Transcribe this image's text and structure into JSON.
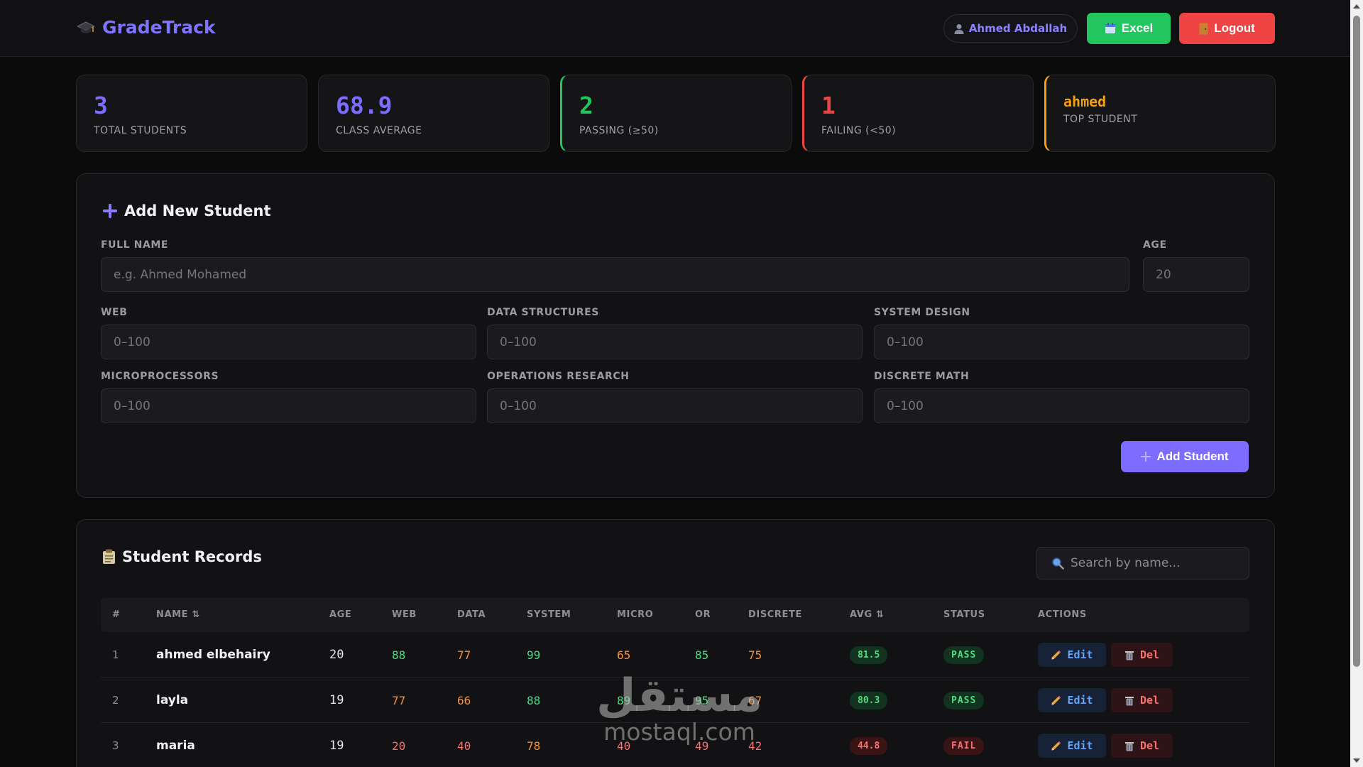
{
  "header": {
    "brand": "GradeTrack",
    "user": "Ahmed Abdallah",
    "excel_label": "Excel",
    "logout_label": "Logout"
  },
  "stats": [
    {
      "value": "3",
      "label": "TOTAL STUDENTS",
      "color": "#7c6cff"
    },
    {
      "value": "68.9",
      "label": "CLASS AVERAGE",
      "color": "#7c6cff"
    },
    {
      "value": "2",
      "label": "PASSING (≥50)",
      "color": "#22c55e"
    },
    {
      "value": "1",
      "label": "FAILING (<50)",
      "color": "#ef4444"
    },
    {
      "value": "ahmed",
      "label": "TOP STUDENT",
      "color": "#f59e0b"
    }
  ],
  "form": {
    "title": "Add New Student",
    "fields": {
      "full_name": {
        "label": "FULL NAME",
        "placeholder": "e.g. Ahmed Mohamed"
      },
      "age": {
        "label": "AGE",
        "placeholder": "20"
      },
      "web": {
        "label": "WEB",
        "placeholder": "0–100"
      },
      "data_structures": {
        "label": "DATA STRUCTURES",
        "placeholder": "0–100"
      },
      "system_design": {
        "label": "SYSTEM DESIGN",
        "placeholder": "0–100"
      },
      "microprocessors": {
        "label": "MICROPROCESSORS",
        "placeholder": "0–100"
      },
      "operations_research": {
        "label": "OPERATIONS RESEARCH",
        "placeholder": "0–100"
      },
      "discrete_math": {
        "label": "DISCRETE MATH",
        "placeholder": "0–100"
      }
    },
    "submit_label": "Add Student"
  },
  "records": {
    "title": "Student Records",
    "search_placeholder": "Search by name...",
    "columns": [
      "#",
      "NAME ⇅",
      "AGE",
      "WEB",
      "DATA",
      "SYSTEM",
      "MICRO",
      "OR",
      "DISCRETE",
      "AVG ⇅",
      "STATUS",
      "ACTIONS"
    ],
    "edit_label": "Edit",
    "delete_label": "Del",
    "rows": [
      {
        "idx": "1",
        "name": "ahmed elbehairy",
        "age": "20",
        "web": "88",
        "data": "77",
        "system": "99",
        "micro": "65",
        "or": "85",
        "discrete": "75",
        "avg": "81.5",
        "status": "PASS"
      },
      {
        "idx": "2",
        "name": "layla",
        "age": "19",
        "web": "77",
        "data": "66",
        "system": "88",
        "micro": "89",
        "or": "95",
        "discrete": "67",
        "avg": "80.3",
        "status": "PASS"
      },
      {
        "idx": "3",
        "name": "maria",
        "age": "19",
        "web": "20",
        "data": "40",
        "system": "78",
        "micro": "40",
        "or": "49",
        "discrete": "42",
        "avg": "44.8",
        "status": "FAIL"
      }
    ]
  },
  "score_colors": {
    "high": "#4ade80",
    "mid": "#fb923c",
    "low": "#f87171"
  },
  "watermark": {
    "arabic": "مستقل",
    "latin": "mostaql.com"
  }
}
